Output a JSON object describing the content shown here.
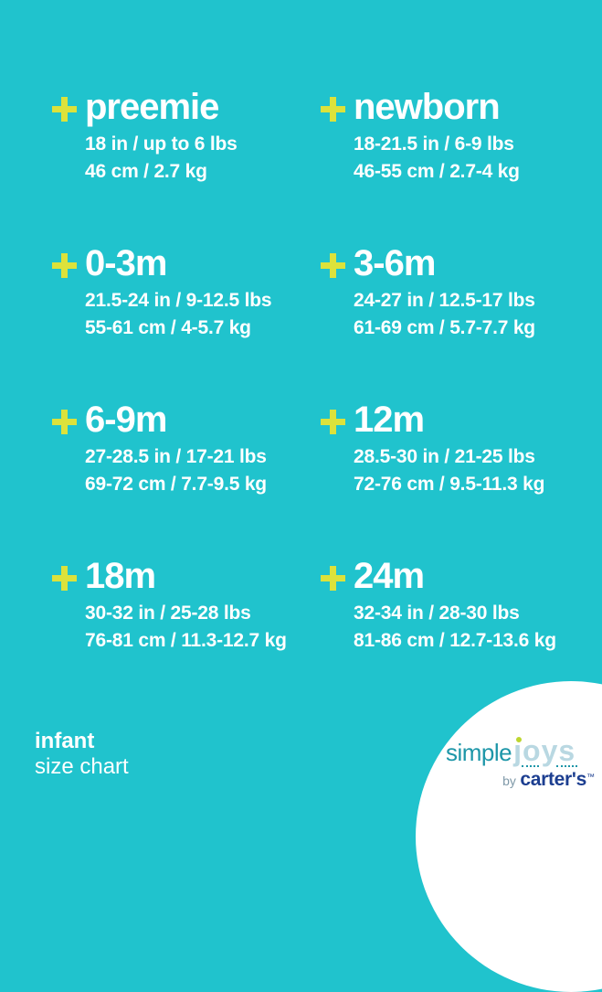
{
  "page": {
    "background_color": "#20c3cd",
    "accent_color": "#dce23b",
    "text_color": "#ffffff"
  },
  "sizes": [
    {
      "label": "preemie",
      "imperial": "18 in / up to 6 lbs",
      "metric": "46 cm / 2.7 kg"
    },
    {
      "label": "newborn",
      "imperial": "18-21.5 in / 6-9 lbs",
      "metric": "46-55 cm / 2.7-4 kg"
    },
    {
      "label": "0-3m",
      "imperial": "21.5-24 in / 9-12.5 lbs",
      "metric": "55-61 cm / 4-5.7 kg"
    },
    {
      "label": "3-6m",
      "imperial": "24-27 in / 12.5-17 lbs",
      "metric": "61-69 cm / 5.7-7.7 kg"
    },
    {
      "label": "6-9m",
      "imperial": "27-28.5 in / 17-21 lbs",
      "metric": "69-72 cm / 7.7-9.5 kg"
    },
    {
      "label": "12m",
      "imperial": "28.5-30 in / 21-25 lbs",
      "metric": "72-76 cm / 9.5-11.3 kg"
    },
    {
      "label": "18m",
      "imperial": "30-32 in / 25-28 lbs",
      "metric": "76-81 cm / 11.3-12.7 kg"
    },
    {
      "label": "24m",
      "imperial": "32-34 in / 28-30 lbs",
      "metric": "81-86 cm / 12.7-13.6 kg"
    }
  ],
  "footer": {
    "category": "infant",
    "subtitle": "size chart"
  },
  "logo": {
    "simple": "simple",
    "joys": "joys",
    "by": "by",
    "brand": "carter's",
    "trademark": "™",
    "simple_color": "#1d96a8",
    "joys_color": "#b9d8e2",
    "joys_dot_color": "#bdd62f",
    "brand_color": "#1c3e90"
  }
}
